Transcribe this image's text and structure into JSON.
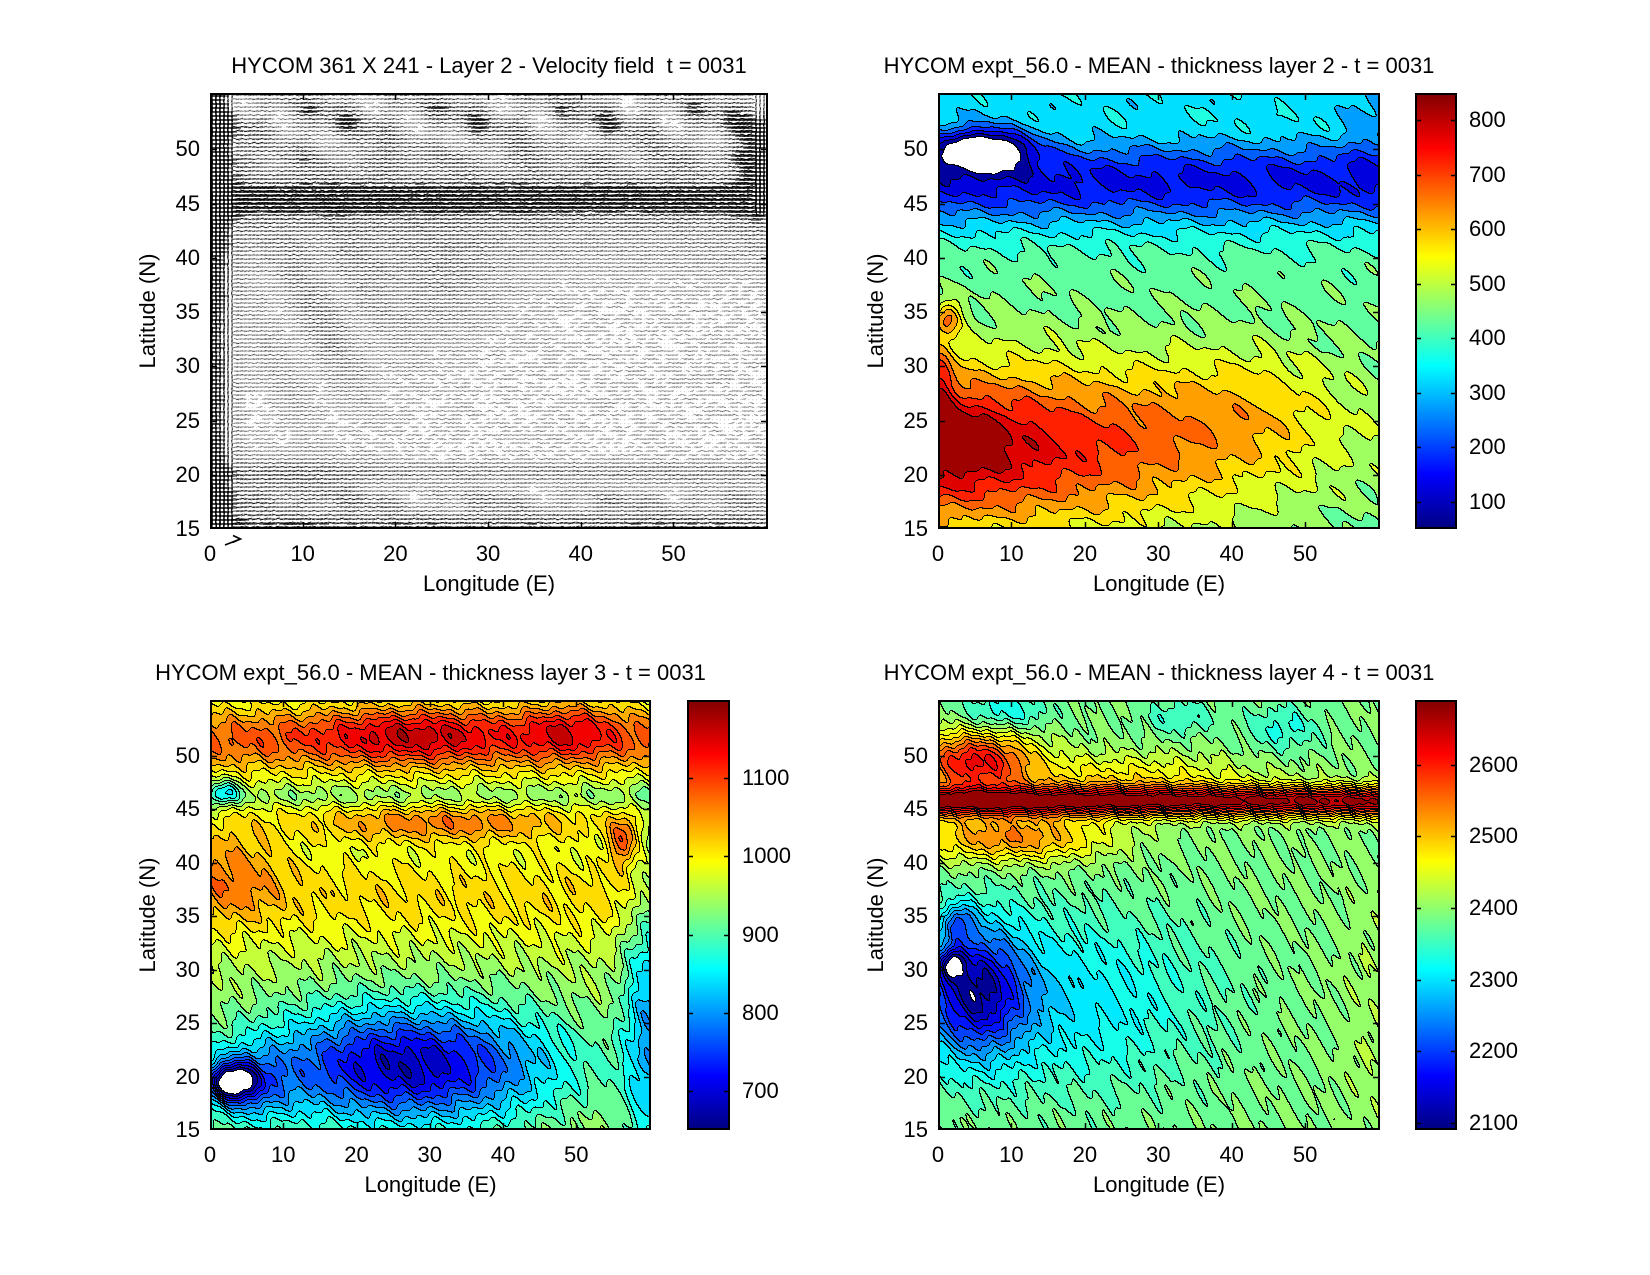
{
  "figure": {
    "background": "#ffffff",
    "text_color": "#000000"
  },
  "chart_data": [
    {
      "id": "velocity",
      "type": "quiver",
      "title": "HYCOM 361 X 241 - Layer 2 - Velocity field  t = 0031",
      "xlabel": "Longitude (E)",
      "ylabel": "Latitude (N)",
      "x_ticks": [
        0,
        10,
        20,
        30,
        40,
        50
      ],
      "y_ticks": [
        15,
        20,
        25,
        30,
        35,
        40,
        45,
        50
      ],
      "x_range": [
        0,
        60.2
      ],
      "y_range": [
        15,
        55.2
      ],
      "arrow_color": "#000000",
      "grid": false,
      "density_model": {
        "base": 0.16,
        "bands": [
          {
            "a": 0.6,
            "y0": 45.6,
            "sy": 1.7
          },
          {
            "a": 0.22,
            "y0": 44.0,
            "sy": 4.5
          },
          {
            "a": 0.55,
            "y0": 52.9,
            "sy": 2.9,
            "patchy": 1
          },
          {
            "a": 0.3,
            "y0": 49.0,
            "sy": 1.3,
            "patchy": 2
          },
          {
            "a": 0.65,
            "x0": 0.4,
            "sx": 2.0
          },
          {
            "a": 0.5,
            "y0": 15.5,
            "sy": 1.0
          },
          {
            "a": 0.3,
            "y0": 17.6,
            "sy": 1.0,
            "patchy": 1
          },
          {
            "a": 0.22,
            "y0": 20.2,
            "sy": 0.9
          },
          {
            "a": 0.25,
            "x0": 8,
            "sx": 9,
            "y0": 19.0,
            "sy": 2.5
          },
          {
            "a": 0.55,
            "x0": 59.3,
            "sx": 2.3,
            "y0": 49.5,
            "sy": 5.5
          },
          {
            "a": 0.3,
            "x0": 12,
            "sx": 7,
            "y0": 35.0,
            "sy": 8.0,
            "patchy": 2
          },
          {
            "a": 0.2,
            "x0": 25,
            "sx": 7,
            "y0": 38.0,
            "sy": 5.0
          }
        ]
      }
    },
    {
      "id": "layer2",
      "type": "contour",
      "title": "HYCOM expt_56.0 - MEAN - thickness layer 2 - t = 0031",
      "xlabel": "Longitude (E)",
      "ylabel": "Latitude (N)",
      "x_ticks": [
        0,
        10,
        20,
        30,
        40,
        50
      ],
      "y_ticks": [
        15,
        20,
        25,
        30,
        35,
        40,
        45,
        50
      ],
      "x_range": [
        0,
        60.2
      ],
      "y_range": [
        15,
        55.2
      ],
      "colormap": "jet",
      "caxis": [
        50,
        850
      ],
      "contour_interval": 50,
      "clip_below_color": "#ffffff",
      "colorbar": {
        "ticks": [
          100,
          200,
          300,
          400,
          500,
          600,
          700,
          800
        ]
      },
      "field_model": {
        "base": 430,
        "terms": [
          {
            "a": -290,
            "y0": 47.0,
            "sy": 4.2
          },
          {
            "a": -90,
            "y0": 54.8,
            "sy": 2.6
          },
          {
            "a": 380,
            "x0": 0,
            "sx": 40,
            "y0": 22.5,
            "sy": 7.5
          },
          {
            "a": 70,
            "x0": 2,
            "sx": 7,
            "y0": 23.0,
            "sy": 4.0
          },
          {
            "a": 90,
            "x0": 42,
            "sx": 14,
            "y0": 26.5,
            "sy": 5.5
          },
          {
            "a": -360,
            "x0": 6,
            "sx": 6.5,
            "y0": 50.0,
            "sy": 2.0
          },
          {
            "a": 140,
            "x0": 0.5,
            "sx": 1.8,
            "y0": 29.5,
            "sy": 4.0
          },
          {
            "a": 180,
            "x0": 1.5,
            "sx": 1.8,
            "y0": 34.5,
            "sy": 1.5
          },
          {
            "a": -60,
            "x0": 59,
            "sx": 4,
            "y0": 52.0,
            "sy": 4.0
          }
        ],
        "wiggles": [
          {
            "a": 16,
            "fx": 0.5,
            "fy": 1.7,
            "p": 0
          },
          {
            "a": 12,
            "fx": 1.1,
            "fy": 0.45,
            "p": 1.3
          },
          {
            "a": 7,
            "fx": 2.3,
            "fy": 3.1,
            "p": 2.1
          }
        ]
      }
    },
    {
      "id": "layer3",
      "type": "contour",
      "title": "HYCOM expt_56.0 - MEAN - thickness layer 3 - t = 0031",
      "xlabel": "Longitude (E)",
      "ylabel": "Latitude (N)",
      "x_ticks": [
        0,
        10,
        20,
        30,
        40,
        50
      ],
      "y_ticks": [
        15,
        20,
        25,
        30,
        35,
        40,
        45,
        50
      ],
      "x_range": [
        0,
        60.2
      ],
      "y_range": [
        15,
        55.2
      ],
      "colormap": "jet",
      "caxis": [
        650,
        1200
      ],
      "contour_interval": 25,
      "clip_below_color": "#ffffff",
      "colorbar": {
        "ticks": [
          700,
          800,
          900,
          1000,
          1100
        ]
      },
      "field_model": {
        "base": 950,
        "terms": [
          {
            "a": 130,
            "y0": 51.5,
            "sy": 3.2
          },
          {
            "a": 90,
            "x0": 28,
            "sx": 13,
            "y0": 52.0,
            "sy": 2.6
          },
          {
            "a": 80,
            "x0": 49,
            "sx": 6.5,
            "y0": 52.5,
            "sy": 2.6
          },
          {
            "a": 110,
            "x0": 32,
            "sx": 22,
            "y0": 43.7,
            "sy": 1.8
          },
          {
            "a": 70,
            "x0": 3,
            "sx": 7,
            "y0": 39.5,
            "sy": 5.0
          },
          {
            "a": 60,
            "y0": 37.0,
            "sy": 4.5
          },
          {
            "a": -270,
            "x0": 27,
            "sx": 20,
            "y0": 21.0,
            "sy": 5.5
          },
          {
            "a": -120,
            "x0": 5,
            "sx": 6,
            "y0": 19.0,
            "sy": 3.5
          },
          {
            "a": -220,
            "x0": 3,
            "sx": 3.2,
            "y0": 19.5,
            "sy": 1.7
          },
          {
            "a": -130,
            "x0": 60,
            "sx": 3.5,
            "y0": 25.0,
            "sy": 14
          },
          {
            "a": 120,
            "x0": 56.5,
            "sx": 2,
            "y0": 42.0,
            "sy": 2.5
          },
          {
            "a": -110,
            "x0": 2,
            "sx": 2,
            "y0": 46.5,
            "sy": 1.2
          },
          {
            "a": -30,
            "y0": 46.2,
            "sy": 1.0
          }
        ],
        "wiggles": [
          {
            "a": 10,
            "fx": 0.9,
            "fy": 1.5,
            "p": 0.5
          },
          {
            "a": 8,
            "fx": 1.7,
            "fy": 0.6,
            "p": 2.0
          },
          {
            "a": 6,
            "fx": 3.1,
            "fy": 2.3,
            "p": 1.1
          }
        ]
      }
    },
    {
      "id": "layer4",
      "type": "contour",
      "title": "HYCOM expt_56.0 - MEAN - thickness layer 4 - t = 0031",
      "xlabel": "Longitude (E)",
      "ylabel": "Latitude (N)",
      "x_ticks": [
        0,
        10,
        20,
        30,
        40,
        50
      ],
      "y_ticks": [
        15,
        20,
        25,
        30,
        35,
        40,
        45,
        50
      ],
      "x_range": [
        0,
        60.2
      ],
      "y_range": [
        15,
        55.2
      ],
      "colormap": "jet",
      "caxis": [
        2090,
        2690
      ],
      "contour_interval": 25,
      "clip_below_color": "#ffffff",
      "colorbar": {
        "ticks": [
          2100,
          2200,
          2300,
          2400,
          2500,
          2600
        ]
      },
      "field_model": {
        "base": 2390,
        "terms": [
          {
            "a": 280,
            "y0": 45.7,
            "sy": 1.35
          },
          {
            "a": 220,
            "x0": 5,
            "sx": 8,
            "y0": 49.5,
            "sy": 2.8
          },
          {
            "a": 80,
            "x0": 25,
            "sx": 18,
            "y0": 48.0,
            "sy": 2.2
          },
          {
            "a": 150,
            "x0": 10,
            "sx": 13,
            "y0": 42.3,
            "sy": 2.2
          },
          {
            "a": -240,
            "x0": 5,
            "sx": 7,
            "y0": 28.0,
            "sy": 6.0
          },
          {
            "a": -90,
            "x0": 18,
            "sx": 18,
            "y0": 27.0,
            "sy": 8.0
          },
          {
            "a": -150,
            "x0": 2,
            "sx": 1.6,
            "y0": 30.5,
            "sy": 1.4
          },
          {
            "a": -110,
            "x0": 3,
            "sx": 2,
            "y0": 34.5,
            "sy": 1.6
          },
          {
            "a": -70,
            "x0": 9,
            "sx": 6,
            "y0": 54.0,
            "sy": 1.8
          },
          {
            "a": -50,
            "x0": 33,
            "sx": 4.5,
            "y0": 53.5,
            "sy": 1.6
          },
          {
            "a": -55,
            "x0": 47,
            "sx": 5,
            "y0": 52.5,
            "sy": 2.2
          },
          {
            "a": 20,
            "x0": 60,
            "sx": 6,
            "y0": 25.0,
            "sy": 15
          }
        ],
        "wiggles": [
          {
            "a": 9,
            "fx": 1.0,
            "fy": 1.4,
            "p": 0.3
          },
          {
            "a": 7,
            "fx": 2.0,
            "fy": 0.7,
            "p": 1.7
          },
          {
            "a": 5,
            "fx": 3.7,
            "fy": 2.9,
            "p": 0.9
          }
        ]
      }
    }
  ]
}
